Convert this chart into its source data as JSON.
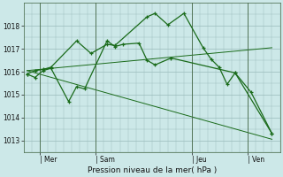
{
  "background_color": "#cce8e8",
  "grid_color": "#99bbbb",
  "line_color": "#1a6b1a",
  "ylabel": "Pression niveau de la mer( hPa )",
  "ylim": [
    1012.5,
    1019.0
  ],
  "yticks": [
    1013,
    1014,
    1015,
    1016,
    1017,
    1018
  ],
  "xlim": [
    0,
    16
  ],
  "day_labels": [
    "| Mer",
    "| Sam",
    "| Jeu",
    "| Ven"
  ],
  "day_positions": [
    1.0,
    4.5,
    10.5,
    14.0
  ],
  "vlines": [
    1.0,
    4.5,
    10.5,
    14.0
  ],
  "series1_x": [
    0.2,
    0.7,
    1.2,
    1.7,
    2.8,
    3.3,
    3.8,
    5.2,
    5.7,
    6.2,
    7.2,
    7.7,
    8.2,
    9.2,
    13.2,
    15.5
  ],
  "series1_y": [
    1015.9,
    1015.75,
    1016.05,
    1016.15,
    1014.7,
    1015.35,
    1015.25,
    1017.35,
    1017.1,
    1017.2,
    1017.25,
    1016.5,
    1016.3,
    1016.6,
    1015.95,
    1013.3
  ],
  "series2_x": [
    0.2,
    0.7,
    1.2,
    1.7,
    3.3,
    4.2,
    5.2,
    5.7,
    7.7,
    8.2,
    9.0,
    10.0,
    11.2,
    11.7,
    12.2,
    12.7,
    13.2,
    14.2,
    15.5
  ],
  "series2_y": [
    1015.9,
    1016.05,
    1016.1,
    1016.2,
    1017.35,
    1016.8,
    1017.2,
    1017.15,
    1018.4,
    1018.55,
    1018.05,
    1018.55,
    1017.05,
    1016.55,
    1016.2,
    1015.45,
    1015.95,
    1015.1,
    1013.3
  ],
  "trend1_x": [
    0.2,
    15.5
  ],
  "trend1_y": [
    1016.05,
    1017.05
  ],
  "trend2_x": [
    0.2,
    15.5
  ],
  "trend2_y": [
    1016.05,
    1013.05
  ],
  "figsize": [
    3.2,
    2.0
  ],
  "dpi": 100
}
